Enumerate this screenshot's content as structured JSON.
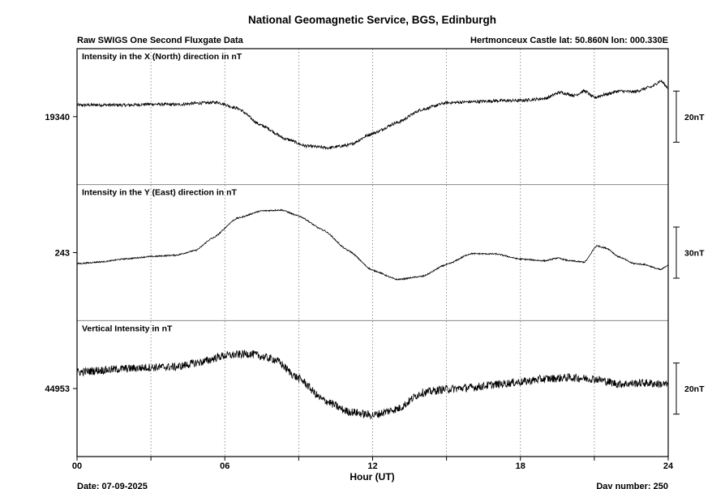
{
  "title": "National Geomagnetic Service, BGS, Edinburgh",
  "subtitle_left": "Raw SWIGS One Second Fluxgate Data",
  "subtitle_right": "Hertmonceux Castle  lat: 50.860N lon: 000.330E",
  "footer_date": "Date: 07-09-2025",
  "footer_day": "Day number:  250",
  "chart_data": {
    "type": "line",
    "xlabel": "Hour (UT)",
    "xlim": [
      0,
      24
    ],
    "x_ticks": [
      "00",
      "06",
      "12",
      "18",
      "24"
    ],
    "grid": true,
    "panels": [
      {
        "label": "Intensity in the X (North) direction in nT",
        "center_label": "19340",
        "center_value": 19340,
        "scale_bar_label": "20nT",
        "scale_bar_value": 20,
        "noise": 0.6,
        "points": [
          [
            0,
            19344.5
          ],
          [
            1,
            19344.6
          ],
          [
            2,
            19344.5
          ],
          [
            3,
            19344.9
          ],
          [
            4,
            19344.7
          ],
          [
            5,
            19345.3
          ],
          [
            5.7,
            19345.6
          ],
          [
            6.5,
            19343.3
          ],
          [
            7.5,
            19336.5
          ],
          [
            8.5,
            19331.2
          ],
          [
            9.3,
            19328.5
          ],
          [
            10.2,
            19327.8
          ],
          [
            11,
            19328.8
          ],
          [
            12,
            19333.4
          ],
          [
            13,
            19337.7
          ],
          [
            14,
            19342.8
          ],
          [
            15,
            19345.4
          ],
          [
            16,
            19345.8
          ],
          [
            17,
            19346.2
          ],
          [
            18,
            19346.3
          ],
          [
            19,
            19347.1
          ],
          [
            19.6,
            19349.5
          ],
          [
            20.2,
            19348.3
          ],
          [
            20.6,
            19350.1
          ],
          [
            21,
            19347.4
          ],
          [
            21.4,
            19348.6
          ],
          [
            22,
            19350.0
          ],
          [
            22.6,
            19349.7
          ],
          [
            23.3,
            19351.6
          ],
          [
            23.7,
            19354.0
          ],
          [
            24,
            19351.2
          ]
        ]
      },
      {
        "label": "Intensity in the Y (East) direction in nT",
        "center_label": "243",
        "center_value": 243,
        "scale_bar_label": "30nT",
        "scale_bar_value": 30,
        "noise": 0.4,
        "points": [
          [
            0,
            236.5
          ],
          [
            1,
            237.6
          ],
          [
            2,
            239.4
          ],
          [
            3,
            240.7
          ],
          [
            4,
            241.5
          ],
          [
            4.8,
            244.2
          ],
          [
            5.5,
            251.5
          ],
          [
            6.5,
            263.2
          ],
          [
            7.5,
            267.5
          ],
          [
            8.3,
            268.0
          ],
          [
            9,
            264.5
          ],
          [
            10,
            256.2
          ],
          [
            11,
            244.3
          ],
          [
            12,
            232.6
          ],
          [
            13,
            227.2
          ],
          [
            14,
            229.0
          ],
          [
            15,
            236.0
          ],
          [
            16,
            242.4
          ],
          [
            17,
            242.2
          ],
          [
            18,
            239.2
          ],
          [
            19,
            238.2
          ],
          [
            19.5,
            239.8
          ],
          [
            20,
            238.2
          ],
          [
            20.6,
            237.4
          ],
          [
            21.1,
            247.0
          ],
          [
            21.5,
            245.6
          ],
          [
            22,
            240.5
          ],
          [
            22.6,
            236.6
          ],
          [
            23,
            236.1
          ],
          [
            23.7,
            233.0
          ],
          [
            24,
            235.8
          ]
        ]
      },
      {
        "label": "Vertical Intensity in nT",
        "center_label": "44953",
        "center_value": 44953,
        "scale_bar_label": "20nT",
        "scale_bar_value": 20,
        "noise": 1.6,
        "points": [
          [
            0,
            44959.4
          ],
          [
            1,
            44960.2
          ],
          [
            2,
            44960.8
          ],
          [
            3,
            44961.3
          ],
          [
            4,
            44961.5
          ],
          [
            5,
            44963.3
          ],
          [
            6,
            44965.9
          ],
          [
            7,
            44966.6
          ],
          [
            8,
            44964.5
          ],
          [
            9,
            44957.0
          ],
          [
            10,
            44948.5
          ],
          [
            11,
            44944.0
          ],
          [
            12,
            44942.6
          ],
          [
            13,
            44945.0
          ],
          [
            14,
            44951.4
          ],
          [
            15,
            44952.8
          ],
          [
            16,
            44953.4
          ],
          [
            17,
            44954.6
          ],
          [
            18,
            44955.6
          ],
          [
            19,
            44956.8
          ],
          [
            20,
            44957.3
          ],
          [
            21,
            44956.8
          ],
          [
            22,
            44954.8
          ],
          [
            23,
            44955.2
          ],
          [
            24,
            44954.6
          ]
        ]
      }
    ]
  }
}
